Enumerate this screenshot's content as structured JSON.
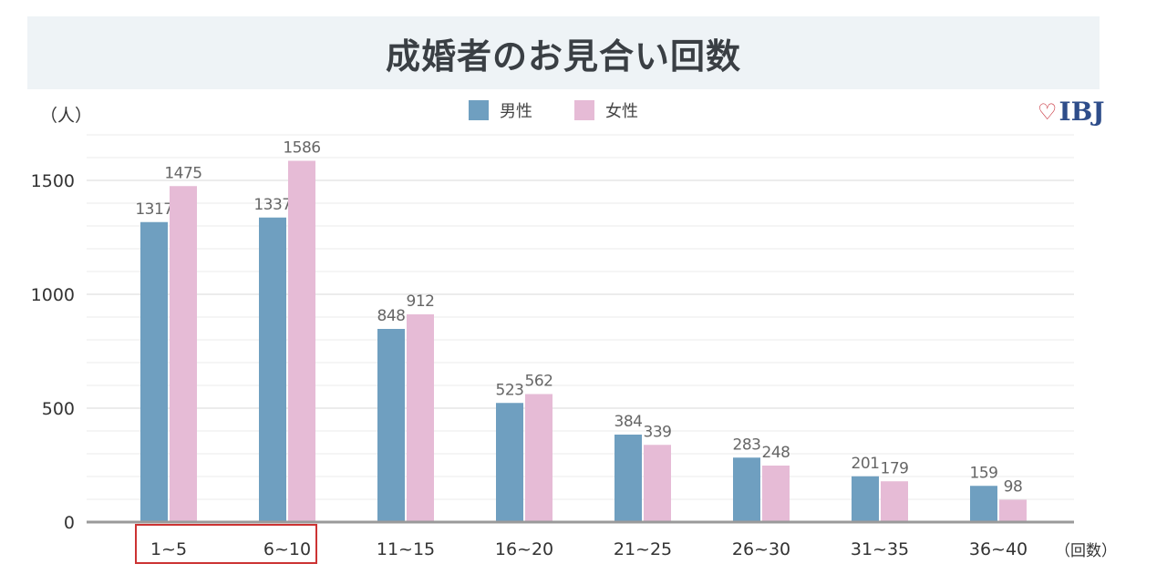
{
  "title": "成婚者のお見合い回数",
  "y_unit": "（人）",
  "x_unit": "（回数）",
  "logo": {
    "heart": "♡",
    "text": "IBJ"
  },
  "colors": {
    "male": "#6f9fc0",
    "female": "#e6bbd6",
    "highlight": "#cc3333",
    "title_bg": "#eef3f6"
  },
  "chart_data": {
    "type": "bar",
    "title": "成婚者のお見合い回数",
    "xlabel": "（回数）",
    "ylabel": "（人）",
    "categories": [
      "1~5",
      "6~10",
      "11~15",
      "16~20",
      "21~25",
      "26~30",
      "31~35",
      "36~40"
    ],
    "series": [
      {
        "name": "男性",
        "color": "#6f9fc0",
        "values": [
          1317,
          1337,
          848,
          523,
          384,
          283,
          201,
          159
        ]
      },
      {
        "name": "女性",
        "color": "#e6bbd6",
        "values": [
          1475,
          1586,
          912,
          562,
          339,
          248,
          179,
          98
        ]
      }
    ],
    "ylim": [
      0,
      1700
    ],
    "yticks": [
      0,
      500,
      1000,
      1500
    ],
    "grid": true,
    "legend_position": "top-center",
    "highlighted_categories": [
      "1~5",
      "6~10"
    ]
  }
}
